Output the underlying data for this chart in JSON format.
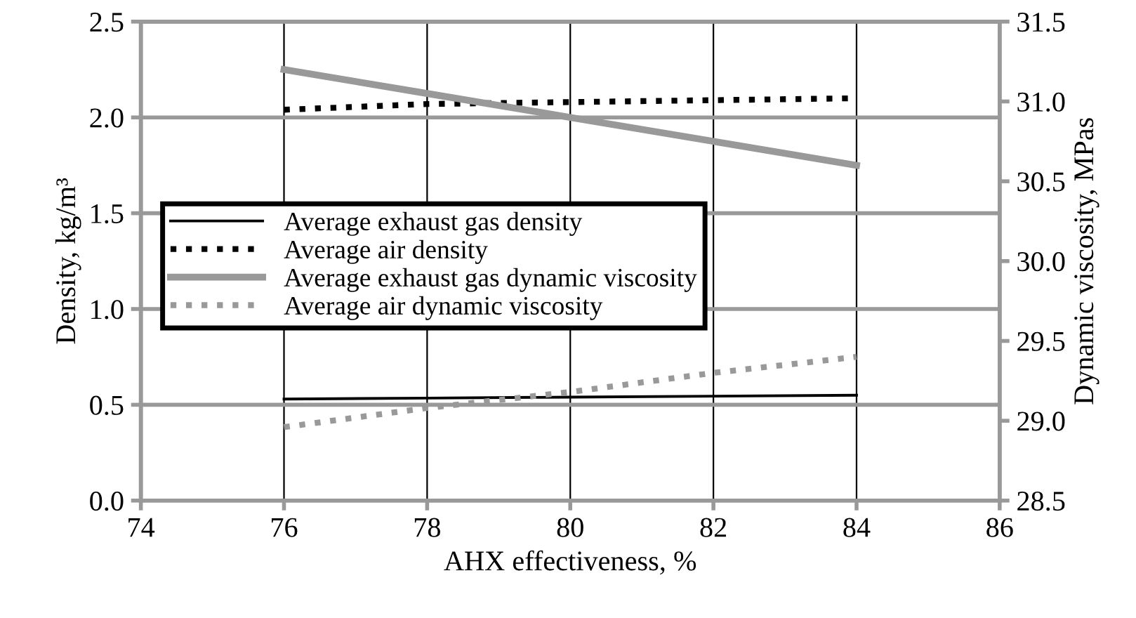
{
  "chart_data": {
    "type": "line",
    "xlabel": "AHX effectiveness, %",
    "ylabel": "Density, kg/m³",
    "y2label": "Dynamic viscosity, MPas",
    "x": [
      76,
      78,
      80,
      82,
      84
    ],
    "series": [
      {
        "name": "Average exhaust gas density",
        "color": "#000000",
        "line_style": "solid",
        "values": [
          0.53,
          0.535,
          0.54,
          0.545,
          0.55
        ]
      },
      {
        "name": "Average air density",
        "color": "#000000",
        "line_style": "dotted",
        "values": [
          2.04,
          2.07,
          2.08,
          2.09,
          2.1
        ]
      },
      {
        "name": "Average exhaust gas dynamic viscosity",
        "color": "#999999",
        "line_style": "solid",
        "axis": "y2",
        "values": [
          31.2,
          31.05,
          30.9,
          30.75,
          30.6
        ]
      },
      {
        "name": "Average air dynamic viscosity",
        "color": "#999999",
        "line_style": "dotted",
        "axis": "y2",
        "values": [
          28.96,
          29.08,
          29.18,
          29.3,
          29.4
        ]
      }
    ],
    "xlim": [
      74,
      86
    ],
    "xticks": [
      74,
      76,
      78,
      80,
      82,
      84,
      86
    ],
    "ylim": [
      0,
      2.5
    ],
    "yticks": [
      {
        "value": 0,
        "label": "0.0"
      },
      {
        "value": 0.5,
        "label": "0.5"
      },
      {
        "value": 1.0,
        "label": "1.0"
      },
      {
        "value": 1.5,
        "label": "1.5"
      },
      {
        "value": 2.0,
        "label": "2.0"
      },
      {
        "value": 2.5,
        "label": "2.5"
      }
    ],
    "y2lim": [
      28.5,
      31.5
    ],
    "y2ticks": [
      {
        "value": 28.5,
        "label": "28.5"
      },
      {
        "value": 29.0,
        "label": "29.0"
      },
      {
        "value": 29.5,
        "label": "29.5"
      },
      {
        "value": 30.0,
        "label": "30.0"
      },
      {
        "value": 30.5,
        "label": "30.5"
      },
      {
        "value": 31.0,
        "label": "31.0"
      },
      {
        "value": 31.5,
        "label": "31.5"
      }
    ],
    "grid": true,
    "legend": "left",
    "marker": "none"
  }
}
